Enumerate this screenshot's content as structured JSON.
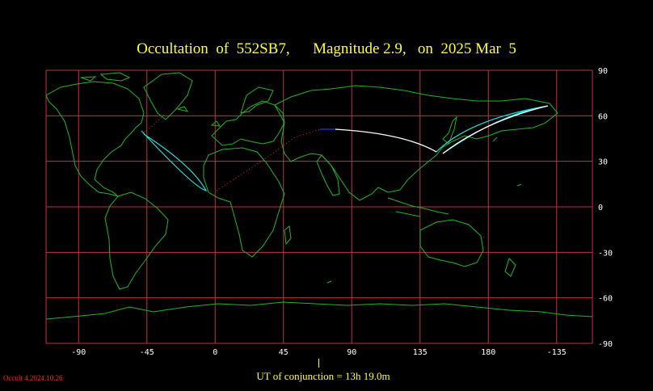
{
  "title": "Occultation  of  552SB7,      Magnitude 2.9,   on  2025 Mar  5",
  "ut_conjunction": "UT of conjunction = 13h 19.0m",
  "version": "Occult 4.2024.10.26",
  "map": {
    "longitude_labels": [
      "-90",
      "-45",
      "0",
      "45",
      "90",
      "135",
      "180",
      "-135"
    ],
    "latitude_labels": [
      "90",
      "60",
      "30",
      "0",
      "-30",
      "-60",
      "-90"
    ],
    "projection": "equirectangular",
    "center_longitude": 75,
    "grid_spacing_degrees": 30,
    "colors": {
      "background": "#000000",
      "grid": "#c0343c",
      "coastlines": "#22b422",
      "occultation_path_limits": "#22dddd",
      "ground_track_daylight": "#ffffff",
      "ground_track_twilight": "#2233ff",
      "ground_track_below_horizon": "#ff2020",
      "text": "#ffff33"
    }
  }
}
